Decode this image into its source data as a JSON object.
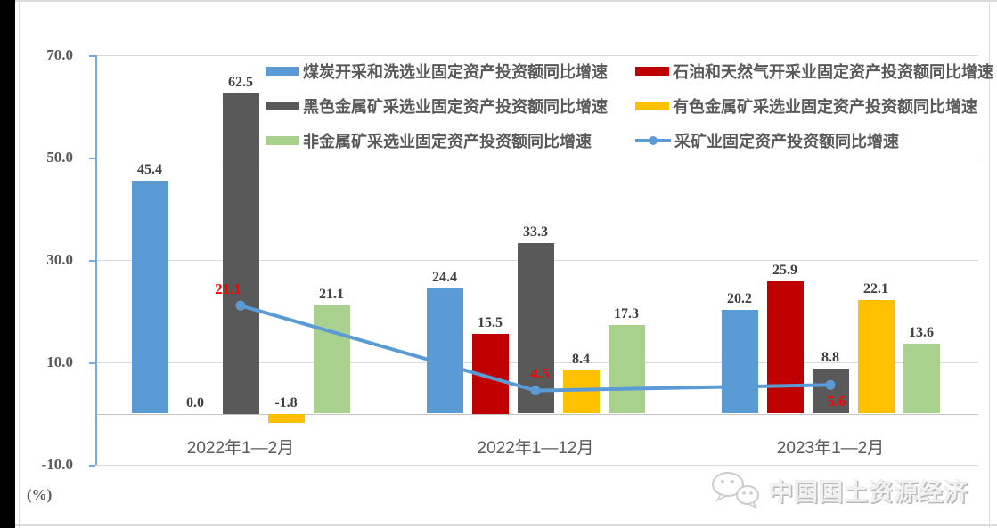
{
  "chart_data": {
    "type": "bar",
    "combo": "grouped-bar-with-line",
    "title": "",
    "categories": [
      "2022年1—2月",
      "2022年1—12月",
      "2023年1—2月"
    ],
    "series": [
      {
        "name": "煤炭开采和洗选业固定资产投资额同比增速",
        "kind": "bar",
        "color": "#5B9BD5",
        "values": [
          45.4,
          24.4,
          20.2
        ]
      },
      {
        "name": "石油和天然气开采业固定资产投资额同比增速",
        "kind": "bar",
        "color": "#C00000",
        "values": [
          0.0,
          15.5,
          25.9
        ]
      },
      {
        "name": "黑色金属矿采选业固定资产投资额同比增速",
        "kind": "bar",
        "color": "#595959",
        "values": [
          62.5,
          33.3,
          8.8
        ]
      },
      {
        "name": "有色金属矿采选业固定资产投资额同比增速",
        "kind": "bar",
        "color": "#FFC000",
        "values": [
          -1.8,
          8.4,
          22.1
        ]
      },
      {
        "name": "非金属矿采选业固定资产投资额同比增速",
        "kind": "bar",
        "color": "#A9D18E",
        "values": [
          21.1,
          17.3,
          13.6
        ]
      },
      {
        "name": "采矿业固定资产投资额同比增速",
        "kind": "line",
        "color": "#5B9BD5",
        "label_color": "#FF0000",
        "values": [
          21.1,
          4.5,
          5.6
        ]
      }
    ],
    "value_label_decimals": 1,
    "xlabel": "",
    "ylabel": "(%)",
    "yaxis": {
      "min": -10,
      "max": 70,
      "tick_step": 20,
      "tick_labels": [
        "70.0",
        "50.0",
        "30.0",
        "10.0",
        "-10.0"
      ],
      "unit_label": "(%)"
    },
    "grid": true,
    "legend_position": "top-right-two-columns",
    "legend_columns": [
      [
        0,
        2,
        4
      ],
      [
        1,
        3,
        5
      ]
    ]
  },
  "watermark": {
    "icon": "wechat-icon",
    "text": "中国国土资源经济"
  }
}
